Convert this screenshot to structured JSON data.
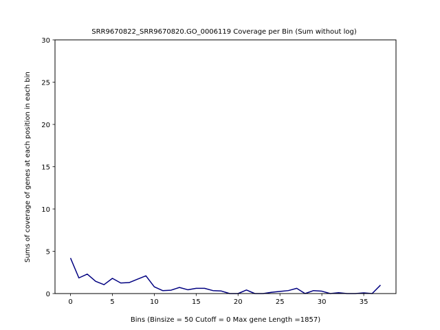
{
  "chart_data": {
    "type": "line",
    "title": "SRR9670822_SRR9670820.GO_0006119 Coverage per Bin (Sum without log)",
    "xlabel": "Bins  (Binsize = 50 Cutoff = 0 Max gene Length =1857)",
    "ylabel": "Sums of coverage of genes at each position in each bin",
    "xlim": [
      -1.85,
      38.85
    ],
    "ylim": [
      0,
      30
    ],
    "xticks": [
      0,
      5,
      10,
      15,
      20,
      25,
      30,
      35
    ],
    "yticks": [
      0,
      5,
      10,
      15,
      20,
      25,
      30
    ],
    "grid": false,
    "series": [
      {
        "color": "#000080",
        "x": [
          0,
          1,
          2,
          3,
          4,
          5,
          6,
          7,
          8,
          9,
          10,
          11,
          12,
          13,
          14,
          15,
          16,
          17,
          18,
          19,
          20,
          21,
          22,
          23,
          24,
          25,
          26,
          27,
          28,
          29,
          30,
          31,
          32,
          33,
          34,
          35,
          36,
          37
        ],
        "values": [
          4.2,
          1.85,
          2.3,
          1.45,
          1.05,
          1.8,
          1.25,
          1.3,
          1.7,
          2.1,
          0.8,
          0.35,
          0.4,
          0.72,
          0.45,
          0.62,
          0.62,
          0.35,
          0.3,
          0.0,
          0.0,
          0.42,
          0.0,
          0.0,
          0.15,
          0.25,
          0.35,
          0.62,
          0.0,
          0.35,
          0.28,
          0.0,
          0.1,
          0.0,
          0.0,
          0.08,
          0.0,
          1.0
        ]
      }
    ]
  }
}
